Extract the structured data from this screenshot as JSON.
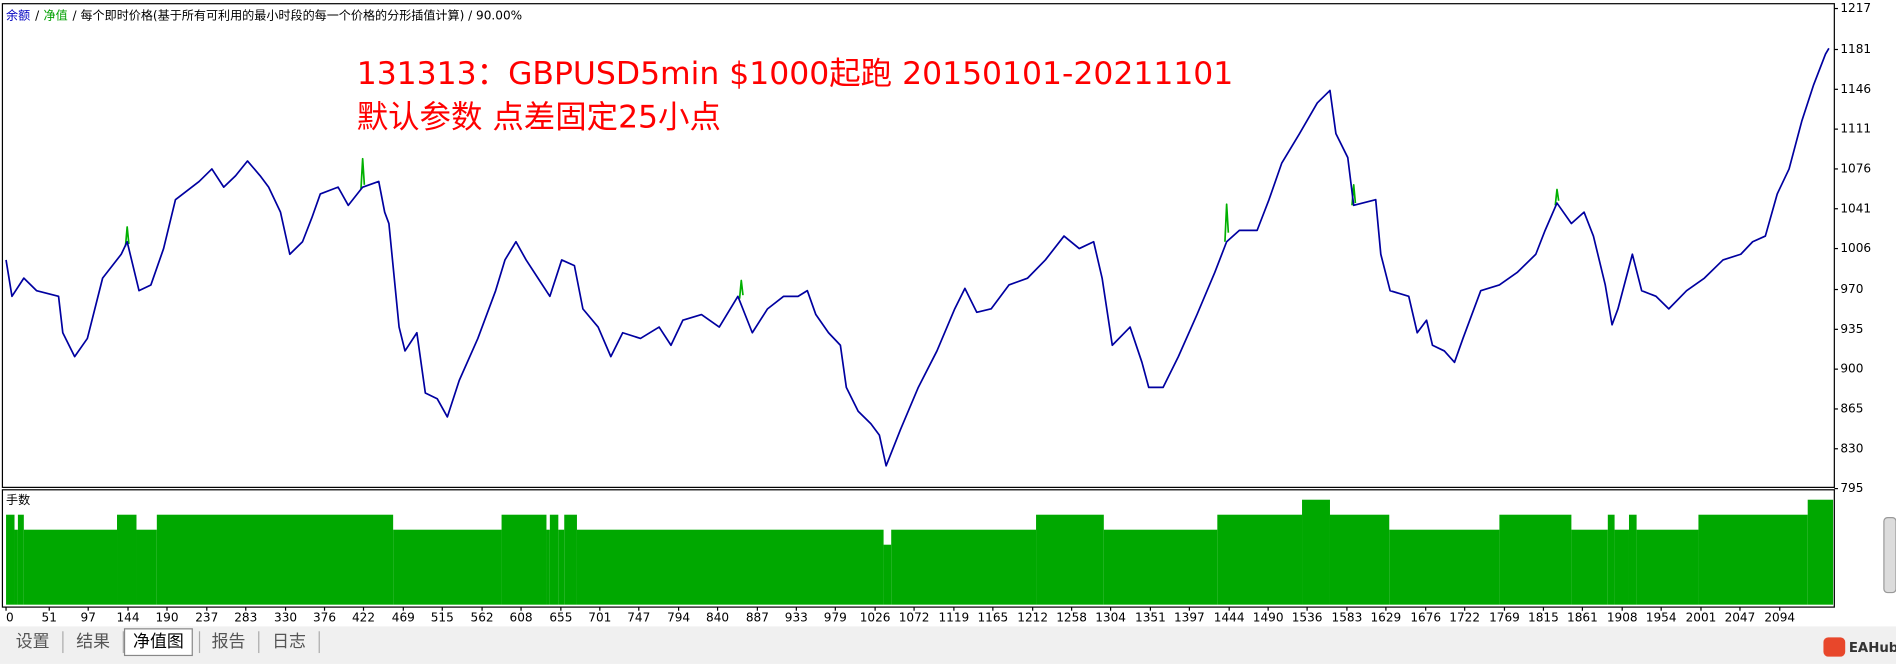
{
  "chart_data": {
    "type": "line",
    "subtitle": "/ 每个即时价格(基于所有可利用的最小时段的每一个价格的分形插值计算) / 90.00%",
    "legend_separator": "/",
    "annotations": [
      "131313：GBPUSD5min $1000起跑 20150101-20211101",
      "默认参数 点差固定25小点"
    ],
    "xlim": [
      0,
      2157
    ],
    "ylim": [
      795,
      1217
    ],
    "yticks": [
      795,
      830,
      865,
      900,
      935,
      970,
      1006,
      1041,
      1076,
      1111,
      1146,
      1181,
      1217
    ],
    "xticks": [
      0,
      51,
      97,
      144,
      190,
      237,
      283,
      330,
      376,
      422,
      469,
      515,
      562,
      608,
      655,
      701,
      747,
      794,
      840,
      887,
      933,
      979,
      1026,
      1072,
      1119,
      1165,
      1212,
      1258,
      1304,
      1351,
      1397,
      1444,
      1490,
      1536,
      1583,
      1629,
      1676,
      1722,
      1769,
      1815,
      1861,
      1908,
      1954,
      2001,
      2047,
      2094
    ],
    "series": [
      {
        "name": "余额",
        "color": "#0000a0",
        "x": [
          0,
          7,
          21,
          36,
          62,
          67,
          81,
          96,
          114,
          136,
          143,
          157,
          171,
          186,
          200,
          214,
          228,
          243,
          257,
          271,
          285,
          300,
          310,
          324,
          335,
          350,
          361,
          371,
          392,
          404,
          421,
          440,
          447,
          452,
          464,
          471,
          485,
          495,
          509,
          521,
          535,
          557,
          578,
          589,
          602,
          614,
          628,
          642,
          656,
          671,
          681,
          699,
          714,
          728,
          749,
          771,
          785,
          799,
          821,
          842,
          864,
          881,
          899,
          918,
          935,
          946,
          956,
          971,
          985,
          992,
          1006,
          1021,
          1031,
          1039,
          1056,
          1077,
          1099,
          1120,
          1132,
          1146,
          1163,
          1184,
          1206,
          1227,
          1249,
          1267,
          1284,
          1294,
          1306,
          1327,
          1341,
          1349,
          1366,
          1384,
          1406,
          1427,
          1441,
          1456,
          1477,
          1491,
          1506,
          1527,
          1548,
          1563,
          1570,
          1584,
          1591,
          1617,
          1623,
          1634,
          1656,
          1666,
          1677,
          1684,
          1698,
          1710,
          1720,
          1741,
          1763,
          1784,
          1806,
          1817,
          1831,
          1848,
          1863,
          1874,
          1888,
          1896,
          1903,
          1920,
          1931,
          1948,
          1963,
          1984,
          2005,
          2027,
          2048,
          2062,
          2077,
          2091,
          2105,
          2120,
          2134,
          2148,
          2152
        ],
        "values": [
          996,
          964,
          980,
          969,
          964,
          932,
          911,
          927,
          980,
          1001,
          1012,
          969,
          974,
          1006,
          1049,
          1057,
          1065,
          1076,
          1060,
          1070,
          1083,
          1070,
          1060,
          1038,
          1001,
          1012,
          1033,
          1054,
          1060,
          1044,
          1060,
          1065,
          1038,
          1028,
          937,
          916,
          932,
          879,
          874,
          858,
          890,
          927,
          969,
          996,
          1012,
          996,
          980,
          964,
          996,
          991,
          953,
          937,
          911,
          932,
          927,
          937,
          921,
          943,
          948,
          937,
          964,
          932,
          953,
          964,
          964,
          969,
          948,
          932,
          921,
          884,
          863,
          852,
          842,
          815,
          847,
          884,
          916,
          953,
          971,
          950,
          953,
          974,
          980,
          996,
          1017,
          1006,
          1012,
          980,
          921,
          937,
          906,
          884,
          884,
          911,
          948,
          985,
          1012,
          1022,
          1022,
          1049,
          1081,
          1107,
          1134,
          1145,
          1107,
          1086,
          1044,
          1049,
          1001,
          969,
          964,
          932,
          943,
          921,
          916,
          906,
          927,
          969,
          974,
          985,
          1001,
          1022,
          1046,
          1028,
          1038,
          1017,
          974,
          939,
          953,
          1001,
          969,
          964,
          953,
          969,
          980,
          996,
          1001,
          1012,
          1017,
          1054,
          1076,
          1118,
          1150,
          1177,
          1182
        ]
      },
      {
        "name": "净值",
        "color": "#00b000",
        "x": [
          141,
          143,
          145,
          146,
          419,
          421,
          423,
          424,
          866,
          868,
          870,
          871,
          1439,
          1441,
          1443,
          1444,
          1589,
          1591,
          1593,
          1594,
          1829,
          1831,
          1833
        ],
        "values": [
          1008,
          1025,
          1010,
          null,
          1058,
          1085,
          1062,
          null,
          962,
          978,
          965,
          null,
          1012,
          1045,
          1020,
          null,
          1044,
          1062,
          1046,
          null,
          1044,
          1058,
          1048
        ]
      }
    ],
    "lots": {
      "label": "手数",
      "color": "#00a800",
      "ylim": [
        0,
        7.5
      ],
      "x": [
        0,
        10,
        14,
        21,
        131,
        154,
        178,
        457,
        585,
        638,
        642,
        652,
        659,
        674,
        1036,
        1045,
        1216,
        1296,
        1430,
        1530,
        1563,
        1633,
        1763,
        1848,
        1891,
        1899,
        1916,
        1925,
        1998,
        2127
      ],
      "values": [
        6,
        5,
        6,
        5,
        6,
        5,
        6,
        5,
        6,
        5,
        6,
        5,
        6,
        5,
        4,
        5,
        6,
        5,
        6,
        7,
        6,
        5,
        6,
        5,
        6,
        5,
        6,
        5,
        6,
        7
      ]
    }
  },
  "tabs": [
    "设置",
    "结果",
    "净值图",
    "报告",
    "日志"
  ],
  "active_tab": 2,
  "watermark": "EAHub"
}
